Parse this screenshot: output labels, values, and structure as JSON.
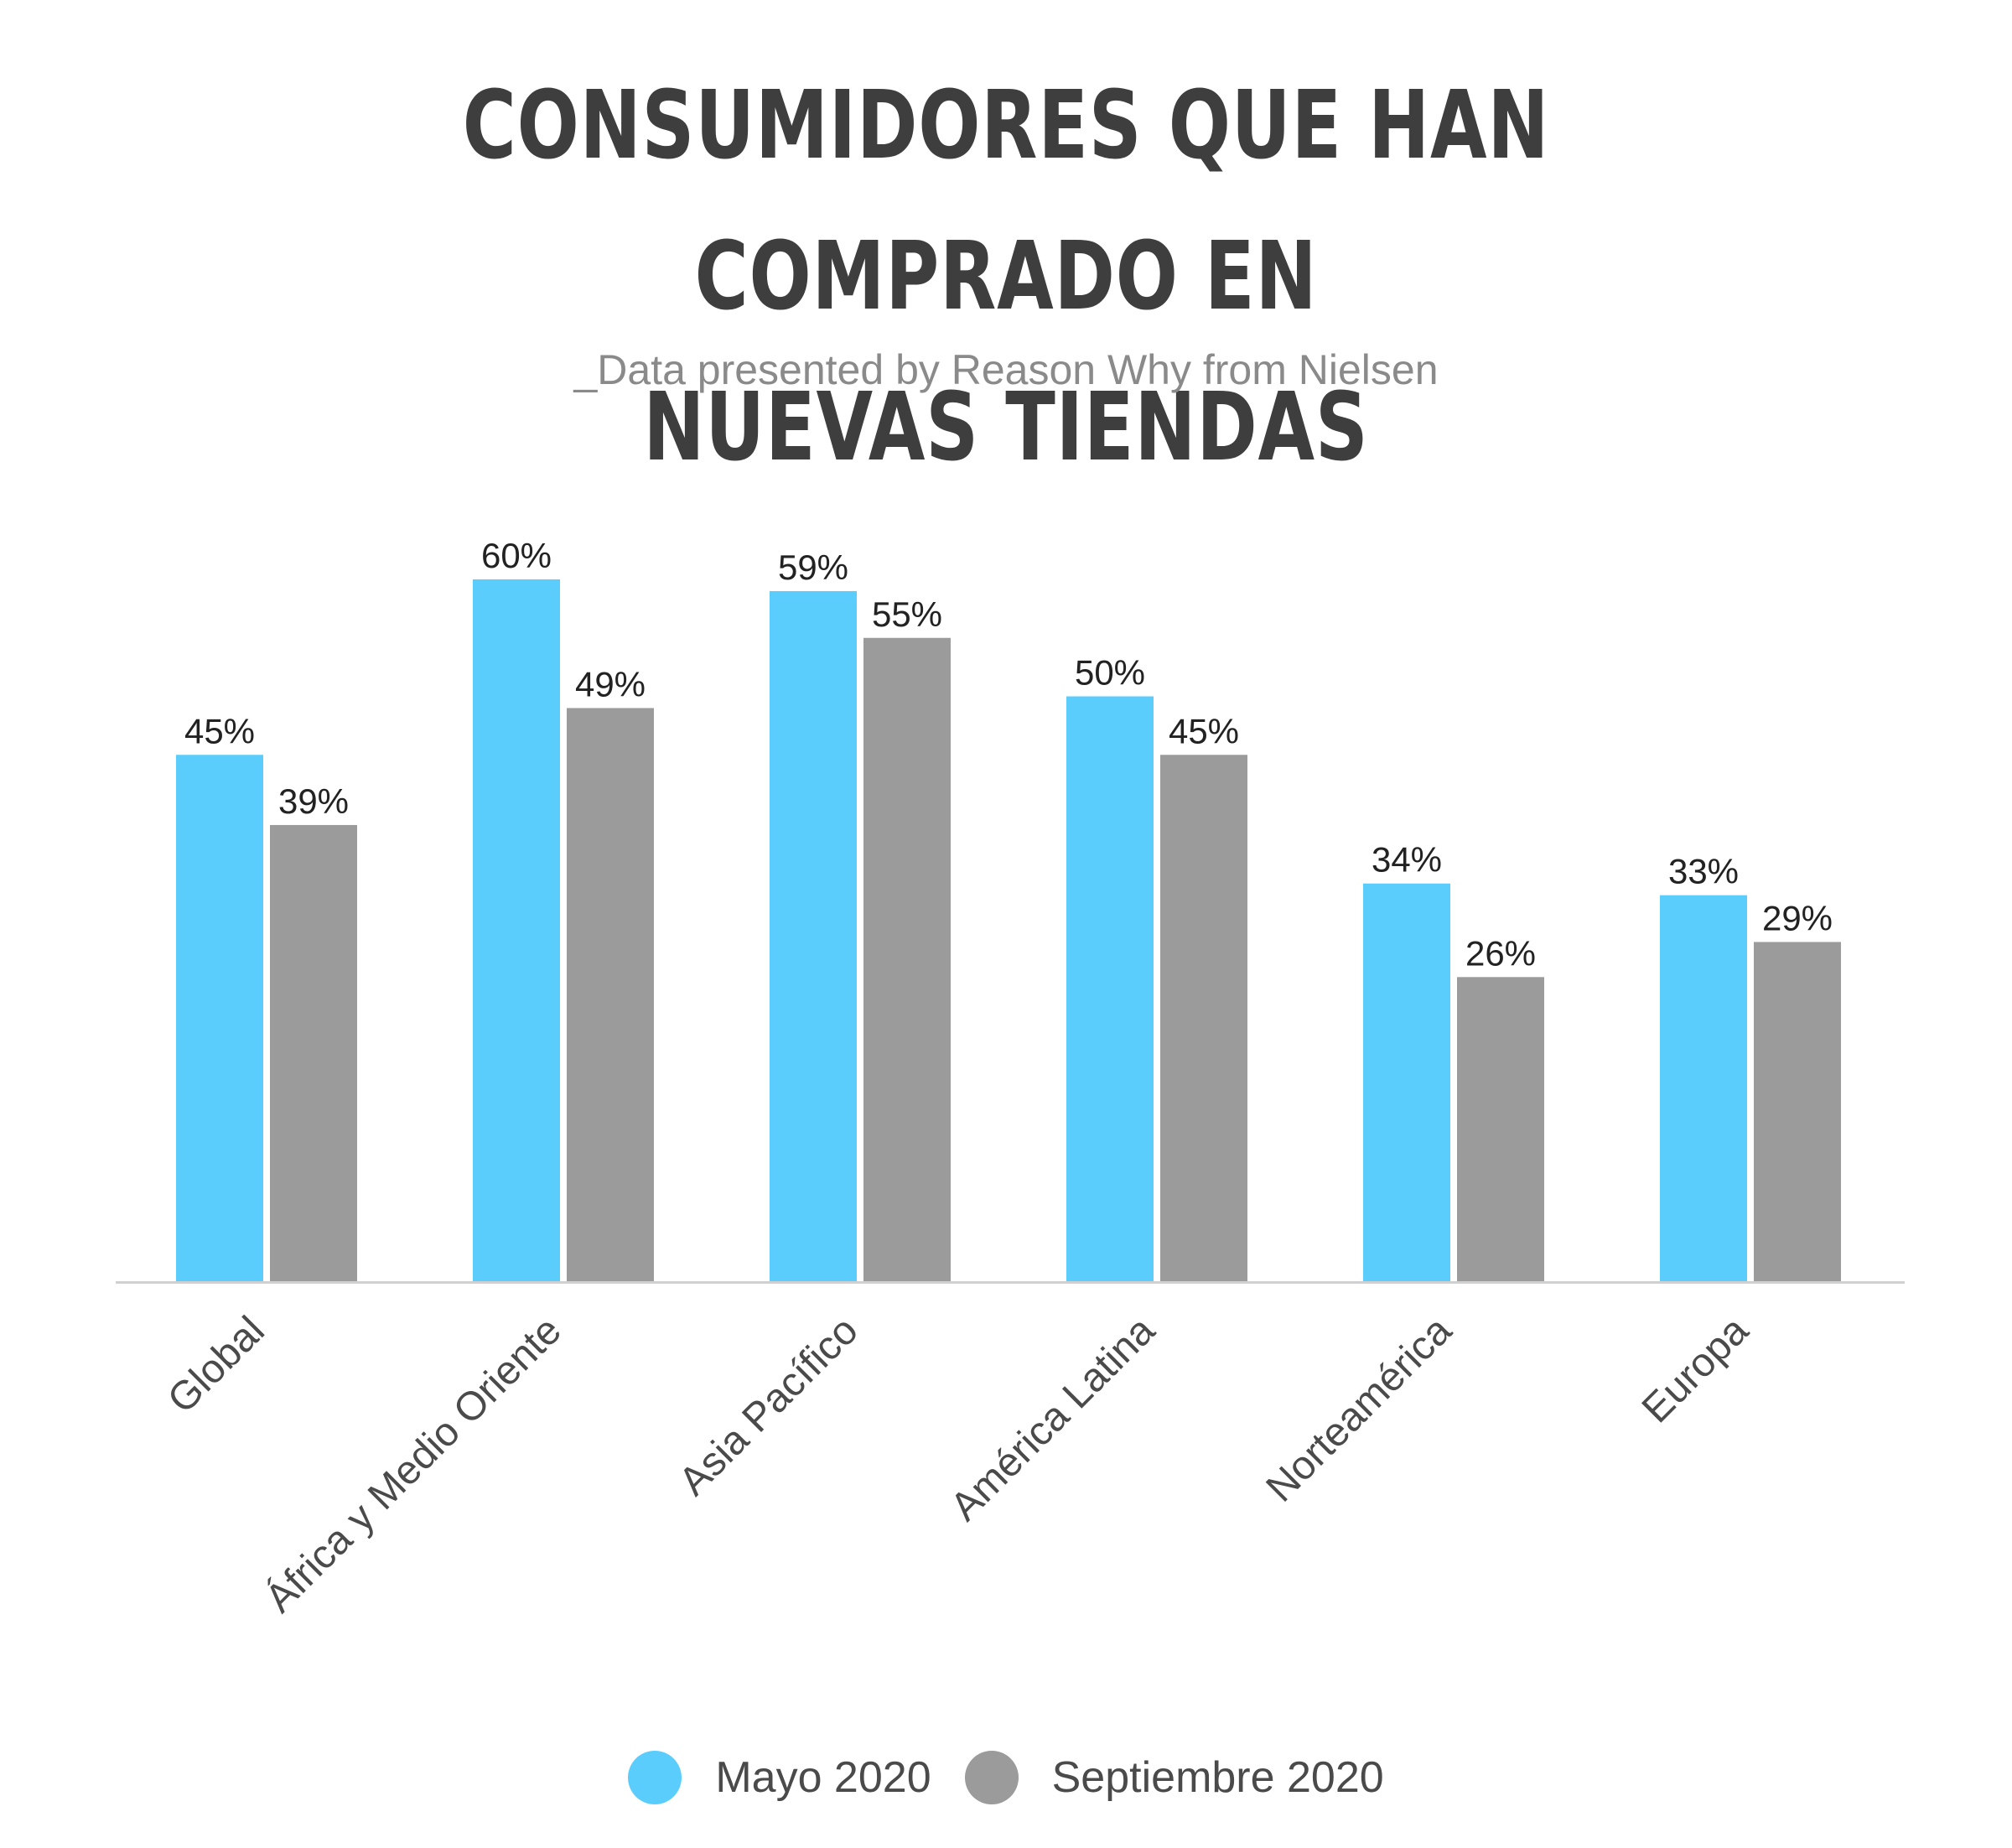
{
  "title_line1": "CONSUMIDORES QUE HAN COMPRADO EN",
  "title_line2": "NUEVAS TIENDAS",
  "subtitle": "_Data presented by Reason Why from Nielsen",
  "colors": {
    "mayo": "#5bcdfd",
    "septiembre": "#9b9b9b",
    "axis": "#d0d0d0"
  },
  "chart_data": {
    "type": "bar",
    "title": "CONSUMIDORES QUE HAN COMPRADO EN NUEVAS TIENDAS",
    "subtitle": "_Data presented by Reason Why from Nielsen",
    "categories": [
      "Global",
      "África y Medio Oriente",
      "Asia Pacífico",
      "América Latina",
      "Norteamérica",
      "Europa"
    ],
    "series": [
      {
        "name": "Mayo 2020",
        "values": [
          45,
          60,
          59,
          50,
          34,
          33
        ],
        "labels": [
          "45%",
          "60%",
          "59%",
          "50%",
          "34%",
          "33%"
        ]
      },
      {
        "name": "Septiembre 2020",
        "values": [
          39,
          49,
          55,
          45,
          26,
          29
        ],
        "labels": [
          "39%",
          "49%",
          "55%",
          "45%",
          "26%",
          "29%"
        ]
      }
    ],
    "ylim": [
      0,
      100
    ],
    "grid": false,
    "legend_position": "bottom"
  }
}
